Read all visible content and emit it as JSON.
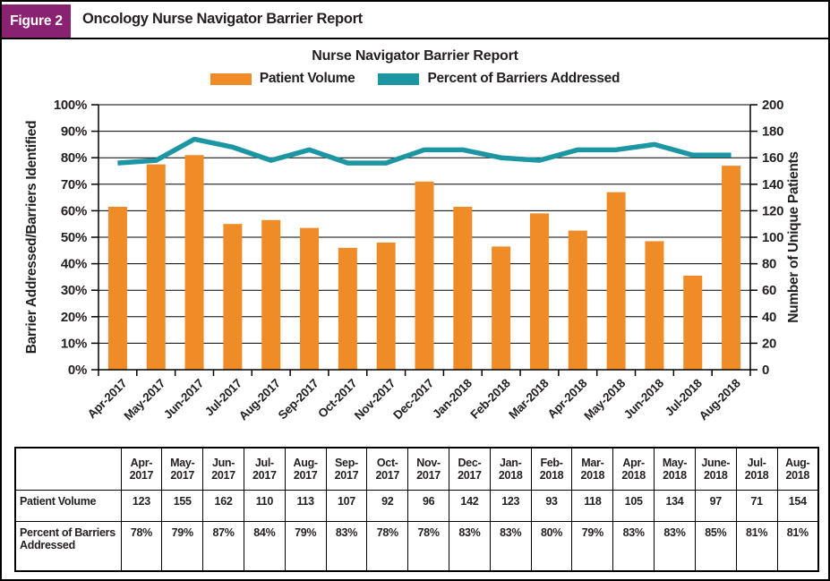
{
  "figure": {
    "badge": "Figure 2",
    "title": "Oncology Nurse Navigator Barrier Report"
  },
  "colors": {
    "badge_purple": "#8A2272",
    "bar_orange": "#EF8C28",
    "line_teal": "#1D96A4",
    "text": "#231F20",
    "grid": "#000000"
  },
  "chart_data": {
    "type": "bar+line",
    "title": "Nurse Navigator Barrier Report",
    "legend_position": "top",
    "grid": true,
    "legend": [
      {
        "label": "Patient Volume",
        "color": "#EF8C28",
        "type": "bar"
      },
      {
        "label": "Percent of Barriers Addressed",
        "color": "#1D96A4",
        "type": "line"
      }
    ],
    "categories": [
      "Apr-2017",
      "May-2017",
      "Jun-2017",
      "Jul-2017",
      "Aug-2017",
      "Sep-2017",
      "Oct-2017",
      "Nov-2017",
      "Dec-2017",
      "Jan-2018",
      "Feb-2018",
      "Mar-2018",
      "Apr-2018",
      "May-2018",
      "Jun-2018",
      "Jul-2018",
      "Aug-2018"
    ],
    "series": [
      {
        "name": "Patient Volume",
        "type": "bar",
        "axis": "right",
        "values": [
          123,
          155,
          162,
          110,
          113,
          107,
          92,
          96,
          142,
          123,
          93,
          118,
          105,
          134,
          97,
          71,
          154
        ]
      },
      {
        "name": "Percent of Barriers Addressed",
        "type": "line",
        "axis": "left",
        "values": [
          78,
          79,
          87,
          84,
          79,
          83,
          78,
          78,
          83,
          83,
          80,
          79,
          83,
          83,
          85,
          81,
          81
        ]
      }
    ],
    "left_axis": {
      "label": "Barrier Addressed/Barriers Identified",
      "min": 0,
      "max": 100,
      "step": 10,
      "format": "percent",
      "ticks": [
        "0%",
        "10%",
        "20%",
        "30%",
        "40%",
        "50%",
        "60%",
        "70%",
        "80%",
        "90%",
        "100%"
      ]
    },
    "right_axis": {
      "label": "Number of Unique Patients",
      "min": 0,
      "max": 200,
      "step": 20,
      "ticks": [
        "0",
        "20",
        "40",
        "60",
        "80",
        "100",
        "120",
        "140",
        "160",
        "180",
        "200"
      ]
    }
  },
  "table": {
    "corner_label": "",
    "columns": [
      "Apr-2017",
      "May-2017",
      "Jun-2017",
      "Jul-2017",
      "Aug-2017",
      "Sep-2017",
      "Oct-2017",
      "Nov-2017",
      "Dec-2017",
      "Jan-2018",
      "Feb-2018",
      "Mar-2018",
      "Apr-2018",
      "May-2018",
      "June-2018",
      "Jul-2018",
      "Aug-2018"
    ],
    "rows": [
      {
        "label": "Patient Volume",
        "values": [
          "123",
          "155",
          "162",
          "110",
          "113",
          "107",
          "92",
          "96",
          "142",
          "123",
          "93",
          "118",
          "105",
          "134",
          "97",
          "71",
          "154"
        ]
      },
      {
        "label": "Percent of Barriers Addressed",
        "values": [
          "78%",
          "79%",
          "87%",
          "84%",
          "79%",
          "83%",
          "78%",
          "78%",
          "83%",
          "83%",
          "80%",
          "79%",
          "83%",
          "83%",
          "85%",
          "81%",
          "81%"
        ]
      }
    ]
  }
}
